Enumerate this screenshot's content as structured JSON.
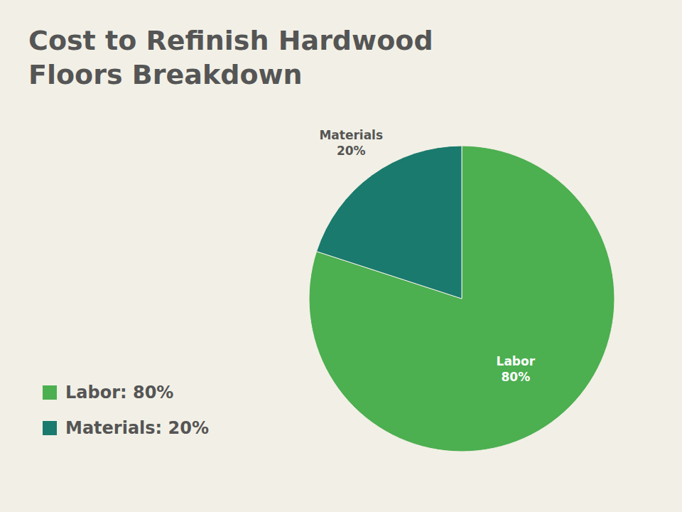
{
  "chart_data": {
    "type": "pie",
    "title": "Cost to Refinish Hardwood",
    "subtitle": "Floors Breakdown",
    "categories": [
      "Labor",
      "Materials"
    ],
    "values": [
      80,
      20
    ],
    "value_labels": [
      "80%",
      "20%"
    ],
    "data_labels": true,
    "colors": [
      "#4caf50",
      "#1a7a6e"
    ],
    "annotations": [
      "Labor: 80%",
      "Materials: 20%"
    ]
  }
}
